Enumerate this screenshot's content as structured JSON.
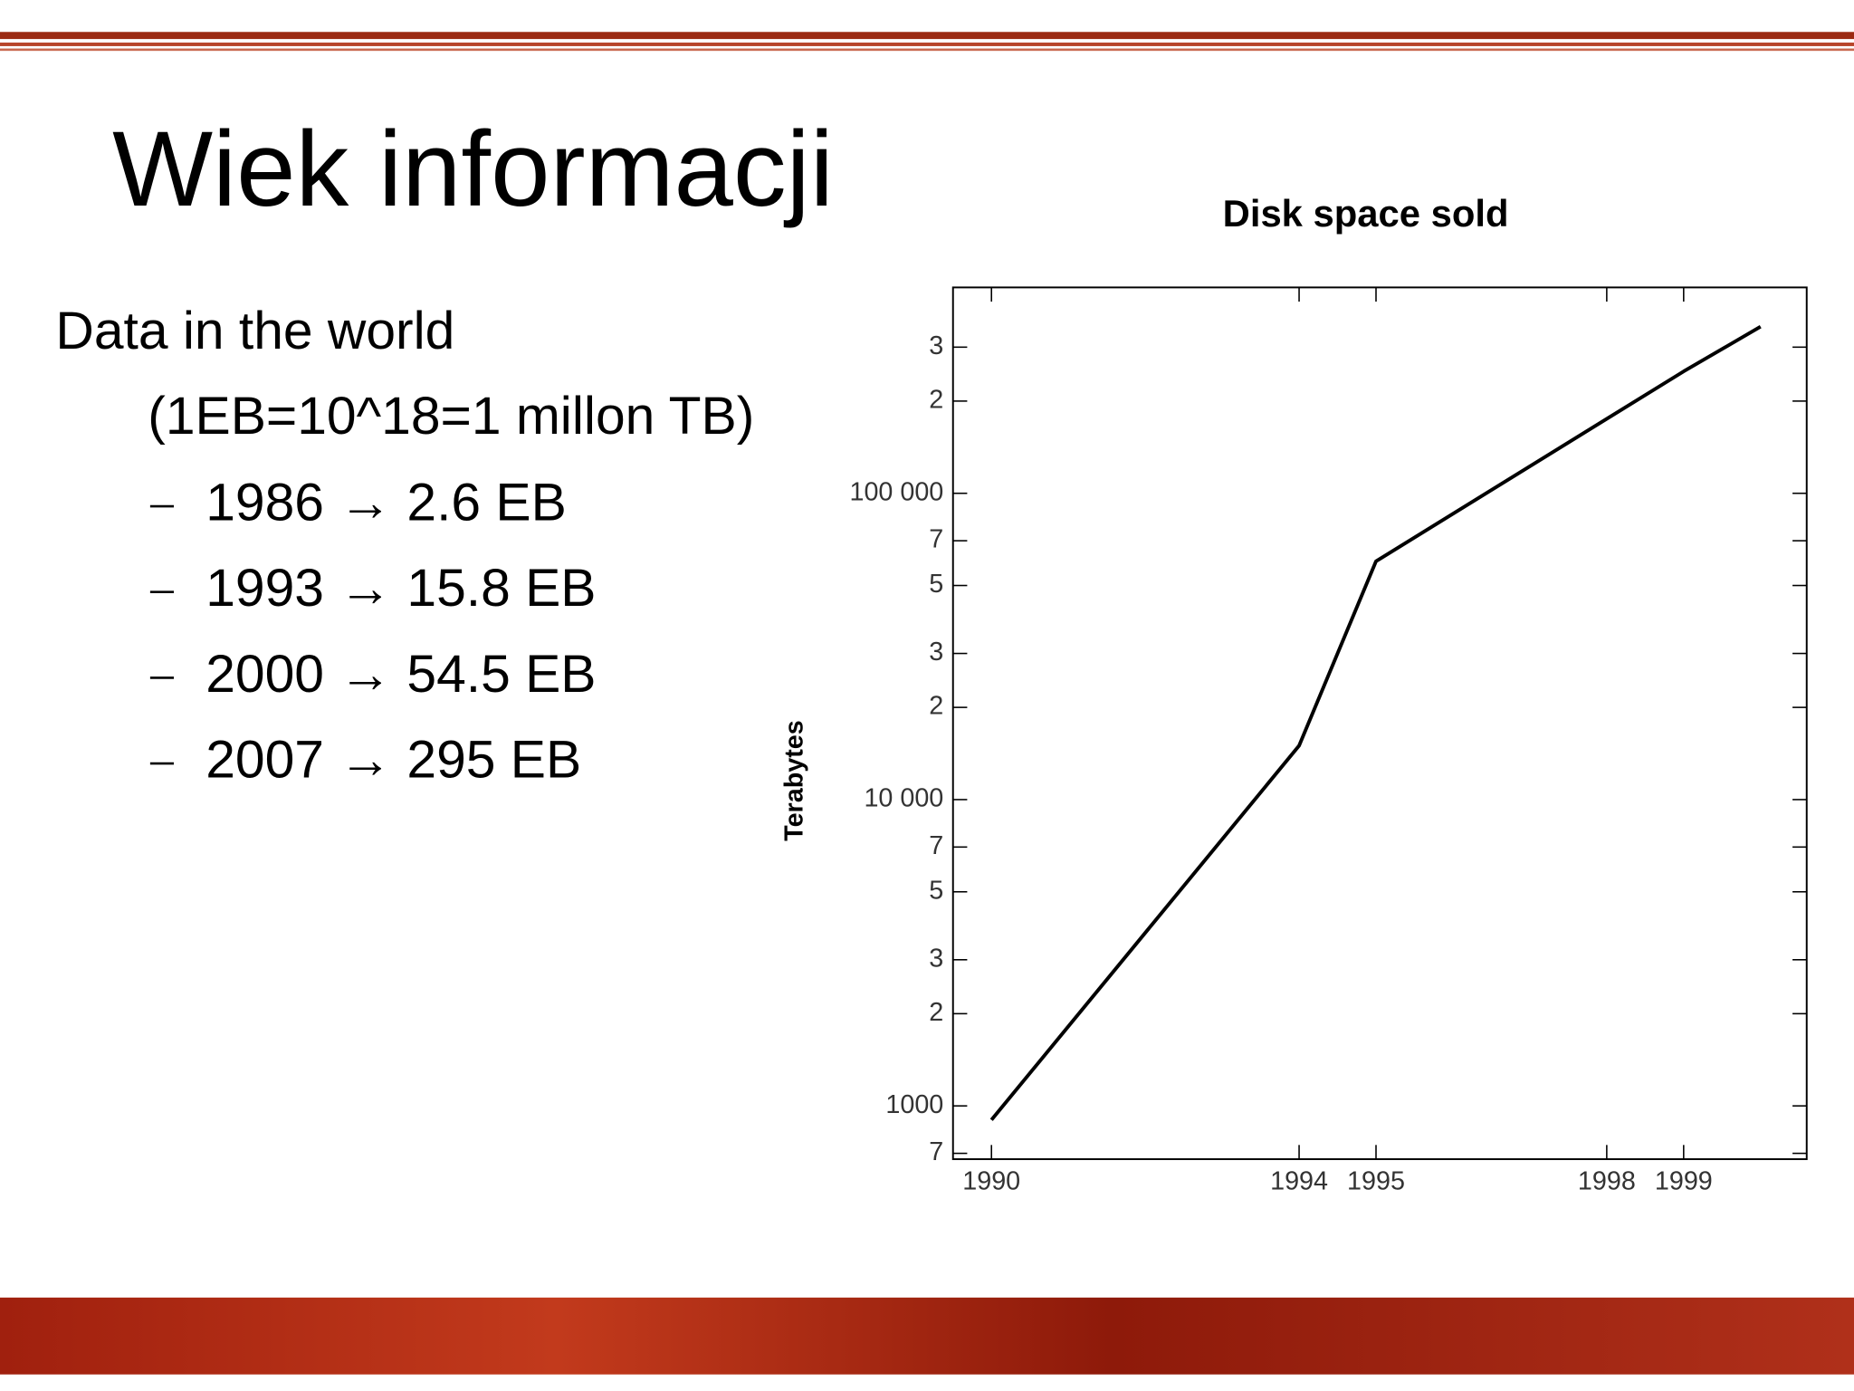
{
  "slide": {
    "title": "Wiek informacji",
    "heading": "Data in the world",
    "note": "(1EB=10^18=1 millon TB)",
    "bullets": [
      "1986 → 2.6 EB",
      "1993 → 15.8 EB",
      "2000 → 54.5 EB",
      "2007 → 295 EB"
    ]
  },
  "chart_data": {
    "type": "line",
    "title": "Disk space sold",
    "y_label": "Terabytes",
    "x": [
      1990,
      1994,
      1995,
      1999,
      2000
    ],
    "values": [
      900,
      15000,
      60000,
      250000,
      350000
    ],
    "color": "#000000",
    "y_log": true,
    "xlim": [
      1989.5,
      2000.6
    ],
    "xticks": [
      1990,
      1994,
      1995,
      1998,
      1999
    ],
    "ylim": [
      670,
      470000
    ],
    "yticks": [
      {
        "value": 700,
        "label": "7"
      },
      1000,
      {
        "value": 2000,
        "label": "2"
      },
      {
        "value": 3000,
        "label": "3"
      },
      {
        "value": 5000,
        "label": "5"
      },
      {
        "value": 7000,
        "label": "7"
      },
      {
        "value": 10000,
        "label": "10 000"
      },
      {
        "value": 20000,
        "label": "2"
      },
      {
        "value": 30000,
        "label": "3"
      },
      {
        "value": 50000,
        "label": "5"
      },
      {
        "value": 70000,
        "label": "7"
      },
      {
        "value": 100000,
        "label": "100 000"
      },
      {
        "value": 200000,
        "label": "2"
      },
      {
        "value": 300000,
        "label": "3"
      }
    ]
  }
}
